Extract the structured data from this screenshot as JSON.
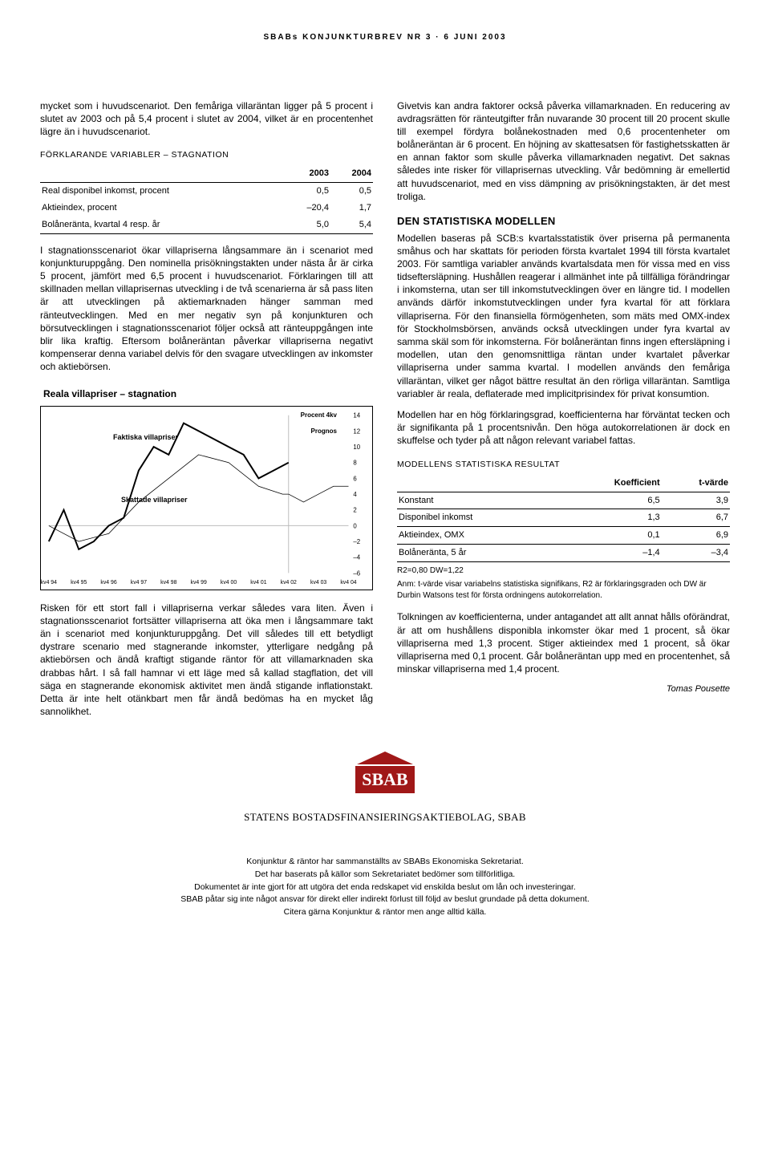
{
  "header": "SBABs KONJUNKTURBREV NR 3 · 6 JUNI 2003",
  "left": {
    "intro": "mycket som i huvudscenariot. Den femåriga villaräntan ligger på 5 procent i slutet av 2003 och på 5,4 procent i slutet av 2004, vilket är en procentenhet lägre än i huvud­scenariot.",
    "tbl1_title": "FÖRKLARANDE VARIABLER – STAGNATION",
    "tbl1": {
      "cols": [
        "",
        "2003",
        "2004"
      ],
      "rows": [
        [
          "Real disponibel inkomst, procent",
          "0,5",
          "0,5"
        ],
        [
          "Aktieindex, procent",
          "–20,4",
          "1,7"
        ],
        [
          "Bolåneränta, kvartal 4 resp. år",
          "5,0",
          "5,4"
        ]
      ]
    },
    "p2": "I stagnationsscenariot ökar villapriserna långsammare än i scenariot med konjunkturuppgång. Den nominella prisök­ningstakten under nästa år är cirka 5 procent, jämfört med 6,5 procent i huvudscenariot. Förklaringen till att skillnaden mellan villaprisernas utveckling i de två scenarierna är så pass liten är att utvecklingen på aktiemarknaden hänger samman med ränteutvecklingen. Med en mer negativ syn på konjunkturen och börsutvecklingen i stagnationsscenariot följer också att ränteuppgången inte blir lika kraftig. Efter­som bolåneräntan påverkar villapriserna negativt kompense­rar denna variabel delvis för den svagare utvecklingen av inkomster och aktiebörsen.",
    "chart": {
      "title": "Reala villapriser – stagnation",
      "labels": {
        "faktiska": "Faktiska villapriser",
        "skattade": "Skattade villapriser",
        "procent": "Procent 4kv",
        "prognos": "Prognos"
      },
      "y_ticks": [
        "14",
        "12",
        "10",
        "8",
        "6",
        "4",
        "2",
        "0",
        "–2",
        "–4",
        "–6"
      ],
      "x_ticks": [
        "kv4 94",
        "kv4 95",
        "kv4 96",
        "kv4 97",
        "kv4 98",
        "kv4 99",
        "kv4 00",
        "kv4 01",
        "kv4 02",
        "kv4 03",
        "kv4 04"
      ],
      "line_color": "#000000",
      "grid_color": "#bbbbbb",
      "faktiska_points": [
        [
          0,
          -2
        ],
        [
          5,
          2
        ],
        [
          10,
          -3
        ],
        [
          15,
          -2
        ],
        [
          20,
          0
        ],
        [
          25,
          1
        ],
        [
          30,
          7
        ],
        [
          35,
          10
        ],
        [
          40,
          9
        ],
        [
          45,
          13
        ],
        [
          50,
          12
        ],
        [
          55,
          11
        ],
        [
          60,
          10
        ],
        [
          65,
          9
        ],
        [
          70,
          6
        ],
        [
          75,
          7
        ],
        [
          80,
          8
        ]
      ],
      "skattade_points": [
        [
          0,
          0
        ],
        [
          10,
          -2
        ],
        [
          20,
          -1
        ],
        [
          30,
          3
        ],
        [
          40,
          6
        ],
        [
          50,
          9
        ],
        [
          60,
          8
        ],
        [
          70,
          5
        ],
        [
          78,
          4
        ],
        [
          80,
          4
        ]
      ],
      "prognos_points": [
        [
          80,
          4
        ],
        [
          85,
          3
        ],
        [
          90,
          4
        ],
        [
          95,
          5
        ],
        [
          100,
          5
        ]
      ]
    },
    "p3": "Risken för ett stort fall i villapriserna verkar således vara liten. Även i stagnationsscenariot fortsätter villapriserna att öka men i långsammare takt än i scenariot med konjunkturupp­gång. Det vill således till ett betydligt dystrare scenario med stagnerande inkomster, ytterligare nedgång på aktiebörsen och ändå kraftigt stigande räntor för att villamarknaden ska drabbas hårt. I så fall hamnar vi ett läge med så kallad stag­flation, det vill säga en stagnerande ekonomisk aktivitet men ändå stigande inflationstakt. Detta är inte helt otänkbart men får ändå bedömas ha en mycket låg sannolikhet."
  },
  "right": {
    "p1": "Givetvis kan andra faktorer också påverka villamarknaden. En reducering av avdragsrätten för ränteutgifter från nuvarande 30 procent till 20 procent skulle till exempel fördyra bolåne­kostnaden med 0,6 procentenheter om bolåneräntan är 6 procent. En höjning av skattesatsen för fastighetsskatten är en annan faktor som skulle påverka villamarknaden negativt. Det saknas således inte risker för villaprisernas utveckling. Vår bedömning är emellertid att huvudscenariot, med en viss dämpning av prisökningstakten, är det mest troliga.",
    "h2": "DEN STATISTISKA MODELLEN",
    "p2": "Modellen baseras på SCB:s kvartalsstatistik över priserna på permanenta småhus och har skattats för perioden första kvartalet 1994 till första kvartalet 2003. För samtliga variab­ler används kvartalsdata men för vissa med en viss tidsefter­släpning. Hushållen reagerar i allmänhet inte på tillfälliga förändringar i inkomsterna, utan ser till inkomstutveckling­en över en längre tid. I modellen används därför inkomstut­vecklingen under fyra kvartal för att förklara villapriserna. För den finansiella förmögenheten, som mäts med OMX-index för Stockholmsbörsen, används också utvecklingen under fyra kvartal av samma skäl som för inkomster­na. För bolåneräntan finns ingen eftersläpning i modellen, utan den genomsnittliga räntan under kvartalet påverkar villapriserna under samma kvartal. I modellen används den femåriga villaräntan, vilket ger något bättre resultat än den rörliga villaräntan. Samtliga variabler är reala, deflaterade med implicitprisindex för privat konsumtion.",
    "p3": "Modellen har en hög förklaringsgrad, koefficienterna har förväntat tecken och är signifikanta på 1 procentsnivån. Den höga autokorrelationen är dock en skuffelse och tyder på att någon relevant variabel fattas.",
    "tbl2_title": "MODELLENS STATISTISKA RESULTAT",
    "tbl2": {
      "cols": [
        "",
        "Koefficient",
        "t-värde"
      ],
      "rows": [
        [
          "Konstant",
          "6,5",
          "3,9"
        ],
        [
          "Disponibel inkomst",
          "1,3",
          "6,7"
        ],
        [
          "Aktieindex, OMX",
          "0,1",
          "6,9"
        ],
        [
          "Bolåneränta, 5 år",
          "–1,4",
          "–3,4"
        ]
      ],
      "note1": "R2=0,80      DW=1,22",
      "note2": "Anm: t-värde visar variabelns statistiska signifikans, R2 är förklarings­graden och DW är Durbin Watsons test för första ordningens autokor­relation."
    },
    "p4": "Tolkningen av koefficienterna, under antagandet att allt annat hålls oförändrat, är att om hushållens disponibla inkomster ökar med 1 procent, så ökar villapriserna med 1,3 procent. Stiger aktieindex med 1 procent, så ökar villapri­serna med 0,1 procent. Går bolåneräntan upp med en procentenhet, så minskar villapriserna med 1,4 procent.",
    "author": "Tomas Pousette"
  },
  "logo_text": "SBAB",
  "logo_bg": "#a01818",
  "logo_roof": "#a01818",
  "org": "STATENS BOSTADSFINANSIERINGSAKTIEBOLAG, SBAB",
  "footer": [
    "Konjunktur & räntor har sammanställts av SBABs Ekonomiska Sekretariat.",
    "Det har baserats på källor som Sekretariatet bedömer som tillförlitliga.",
    "Dokumentet är inte gjort för att utgöra det enda redskapet vid enskilda beslut om lån och investeringar.",
    "SBAB påtar sig inte något ansvar för direkt eller indirekt förlust till följd av beslut grundade på detta dokument.",
    "Citera gärna Konjunktur & räntor men ange alltid källa."
  ]
}
